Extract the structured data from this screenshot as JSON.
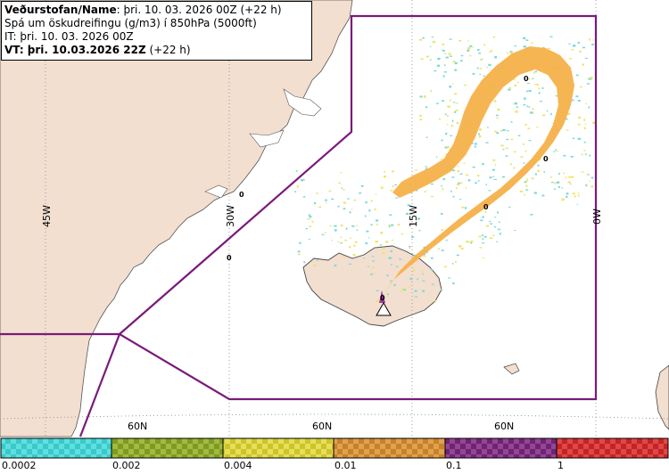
{
  "title": {
    "line1_label": "Veðurstofan/Name",
    "line1_value": ": þri. 10. 03. 2026 00Z (+22 h)",
    "line2": "Spá um öskudreifingu (g/m3) í 850hPa (5000ft)",
    "line3": "IT: þri. 10. 03. 2026 00Z",
    "line4_label": "VT: þri. 10.03.2026 22Z",
    "line4_value": " (+22 h)"
  },
  "grid_labels": {
    "lon_45w": "45W",
    "lon_30w": "30W",
    "lon_15w": "15W",
    "lon_0w": "0W",
    "lat_60n_a": "60N",
    "lat_60n_b": "60N",
    "lat_60n_c": "60N"
  },
  "markers": {
    "zero_label": "0"
  },
  "legend": {
    "colors": [
      "#3cc8c8",
      "#8aa02a",
      "#d4cc30",
      "#cc8a30",
      "#7a2a7a",
      "#cc2a2a"
    ],
    "labels": [
      "0.0002",
      "0.002",
      "0.004",
      "0.01",
      "0.1",
      "1"
    ]
  },
  "map_colors": {
    "land": "#f2dfd0",
    "sea": "#ffffff",
    "region_outline": "#7a1a7a",
    "ash_plume": "#f5b14a",
    "ash_light": "#f0e36a",
    "ash_trace": "#7fd8d8"
  }
}
